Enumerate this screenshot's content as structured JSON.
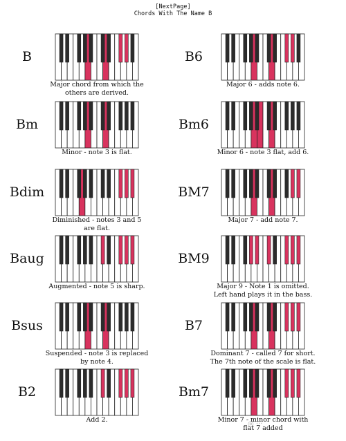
{
  "header": {
    "link": "[NextPage]",
    "title": "Chords With The Name B"
  },
  "colors": {
    "highlight": "#d8335e",
    "key_white": "#ffffff",
    "key_black": "#2b2b2b",
    "outline": "#222222"
  },
  "chords": [
    {
      "name": "B",
      "caption": [
        "Major chord from which the",
        "others are derived."
      ],
      "white": [],
      "black": []
    },
    {
      "name": "B6",
      "caption": [
        "Major 6 - adds note 6."
      ],
      "white": [],
      "black": []
    },
    {
      "name": "Bm",
      "caption": [
        "Minor - note 3 is flat."
      ],
      "white": [],
      "black": []
    },
    {
      "name": "Bm6",
      "caption": [
        "Minor 6 - note 3 flat, add 6."
      ],
      "white": [],
      "black": []
    },
    {
      "name": "Bdim",
      "caption": [
        "Diminished - notes 3 and 5",
        "are flat."
      ],
      "white": [],
      "black": []
    },
    {
      "name": "BM7",
      "caption": [
        "Major 7 - add note 7."
      ],
      "white": [],
      "black": []
    },
    {
      "name": "Baug",
      "caption": [
        "Augmented - note 5 is sharp."
      ],
      "white": [],
      "black": []
    },
    {
      "name": "BM9",
      "caption": [
        "Major 9 - Note 1 is omitted.",
        "Left hand plays it in the bass."
      ],
      "white": [],
      "black": []
    },
    {
      "name": "Bsus",
      "caption": [
        "Suspended - note 3 is replaced",
        "by note 4."
      ],
      "white": [],
      "black": []
    },
    {
      "name": "B7",
      "caption": [
        "Dominant 7 - called 7 for short.",
        "The 7th note of the scale is flat."
      ],
      "white": [],
      "black": []
    },
    {
      "name": "B2",
      "caption": [
        "Add 2."
      ],
      "white": [],
      "black": []
    },
    {
      "name": "Bm7",
      "caption": [
        "Minor 7 - minor chord with",
        "flat 7 added"
      ],
      "white": [],
      "black": []
    }
  ]
}
